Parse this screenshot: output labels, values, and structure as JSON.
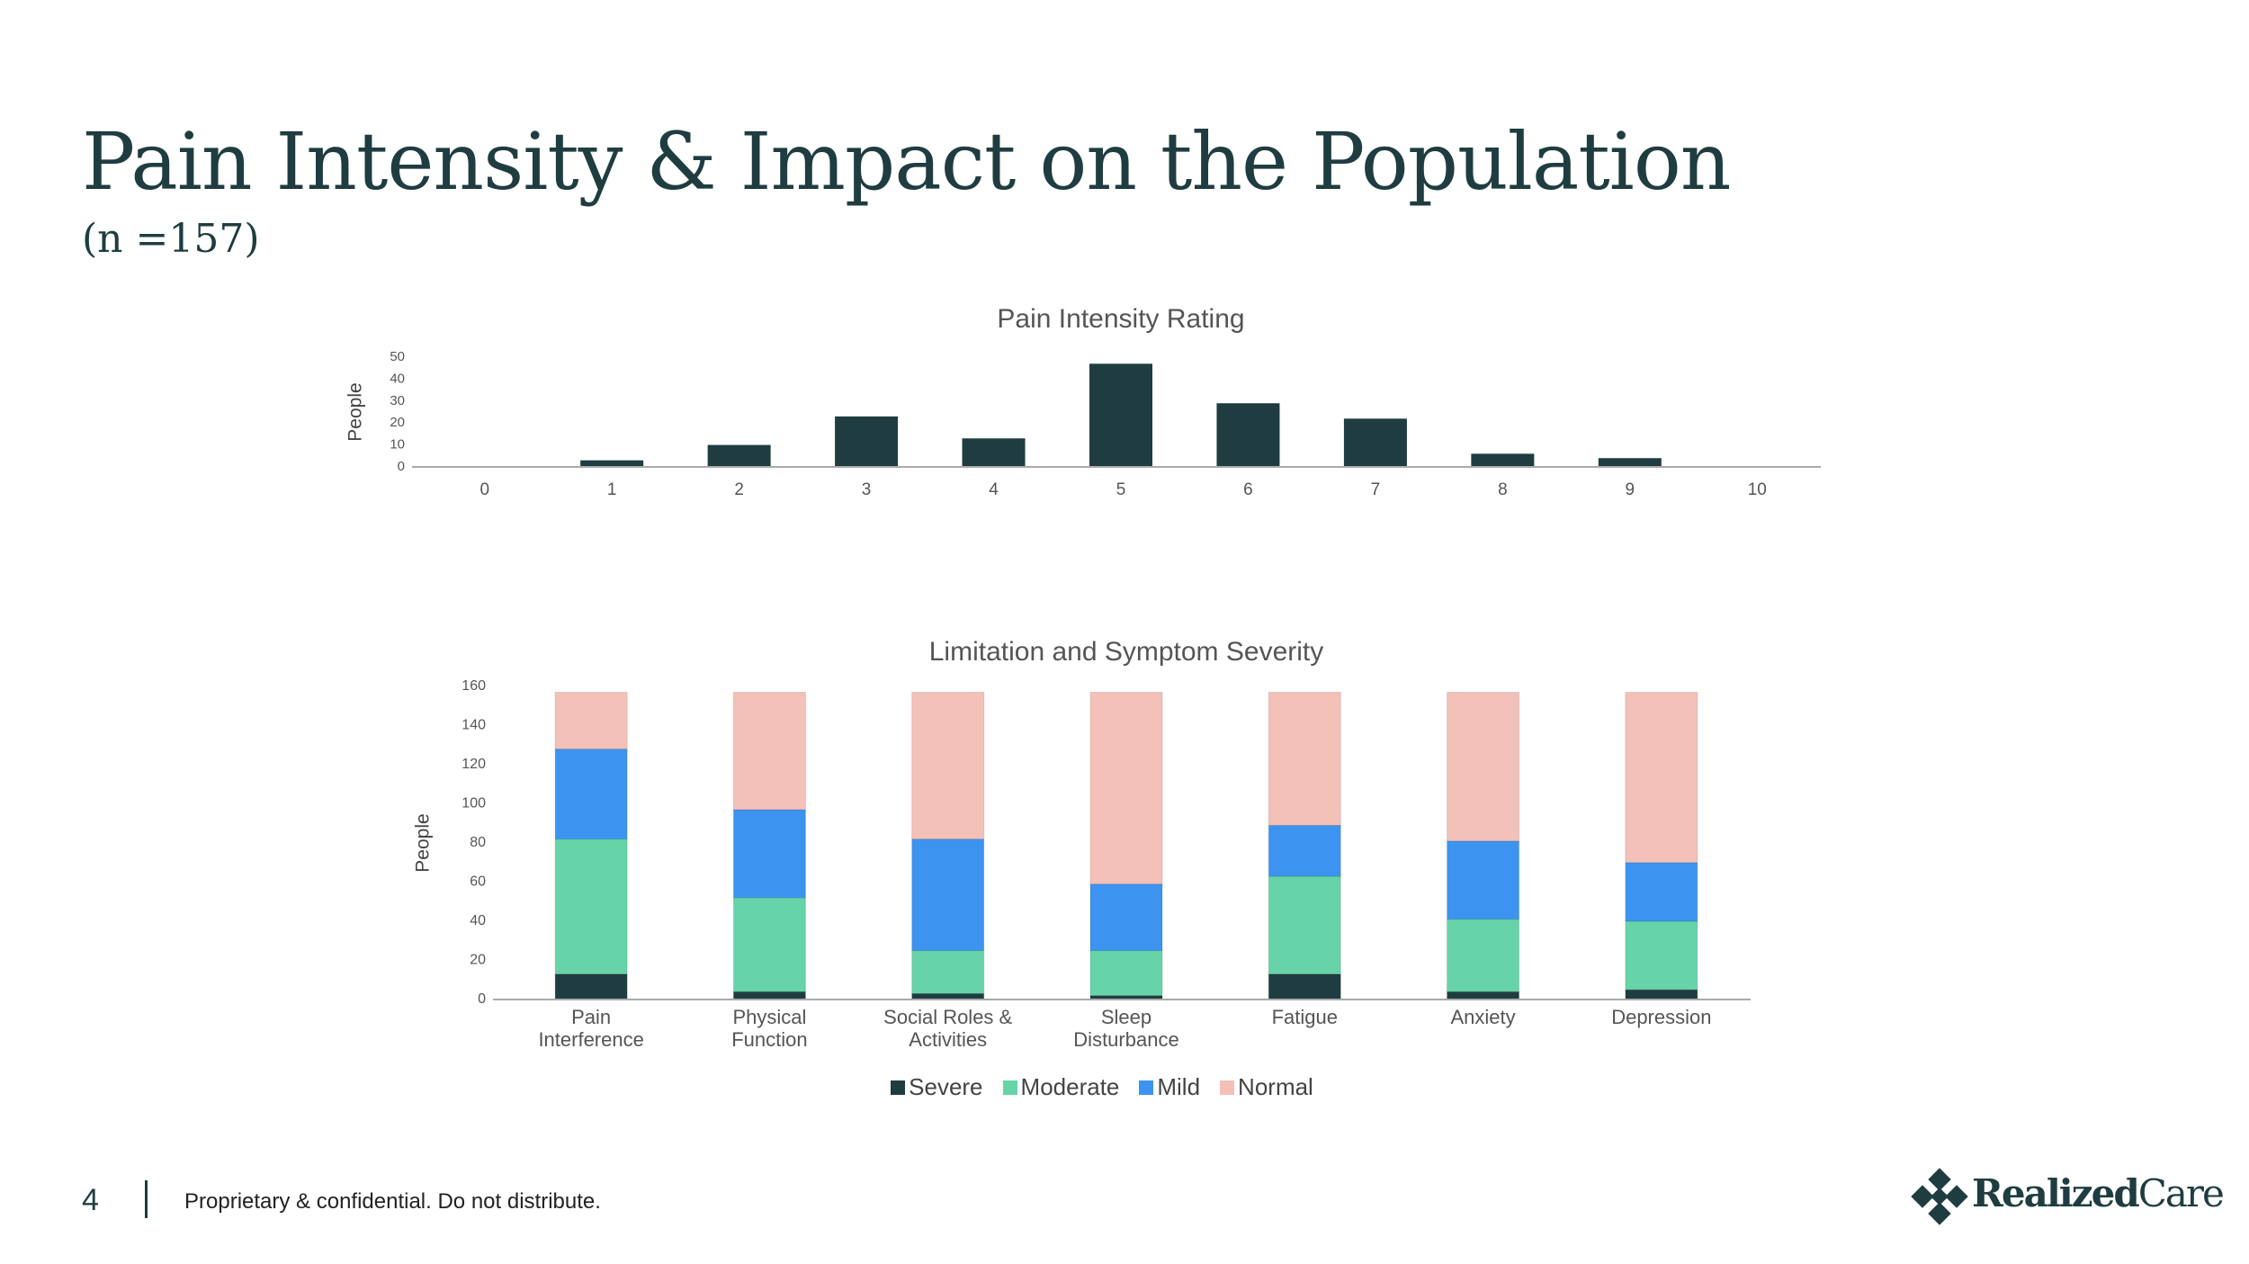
{
  "header": {
    "title": "Pain Intensity & Impact on the Population",
    "subtitle": "(n =157)"
  },
  "chart_data": [
    {
      "type": "bar",
      "title": "Pain Intensity Rating",
      "y_label": "People",
      "categories": [
        "0",
        "1",
        "2",
        "3",
        "4",
        "5",
        "6",
        "7",
        "8",
        "9",
        "10"
      ],
      "values": [
        0,
        3,
        10,
        23,
        13,
        47,
        29,
        22,
        6,
        4,
        0
      ],
      "color": "#1f3d40",
      "ylim": [
        0,
        50
      ],
      "yticks": [
        0,
        10,
        20,
        30,
        40,
        50
      ],
      "grid": false
    },
    {
      "type": "stacked_bar",
      "title": "Limitation and Symptom Severity",
      "y_label": "People",
      "categories": [
        "Pain Interference",
        "Physical Function",
        "Social Roles & Activities",
        "Sleep Disturbance",
        "Fatigue",
        "Anxiety",
        "Depression"
      ],
      "series": [
        {
          "name": "Severe",
          "color": "#1f3d40",
          "values": [
            13,
            4,
            3,
            2,
            13,
            4,
            5
          ]
        },
        {
          "name": "Moderate",
          "color": "#66d4a8",
          "values": [
            69,
            48,
            22,
            23,
            50,
            37,
            35
          ]
        },
        {
          "name": "Mild",
          "color": "#3d94f0",
          "values": [
            46,
            45,
            57,
            34,
            26,
            40,
            30
          ]
        },
        {
          "name": "Normal",
          "color": "#f4c1b9",
          "values": [
            29,
            60,
            75,
            98,
            68,
            76,
            87
          ]
        }
      ],
      "ylim": [
        0,
        160
      ],
      "yticks": [
        0,
        20,
        40,
        60,
        80,
        100,
        120,
        140,
        160
      ],
      "grid": false,
      "legend": "bottom"
    }
  ],
  "footer": {
    "page": "4",
    "notice": "Proprietary & confidential. Do not distribute.",
    "brand": [
      "Realized",
      "Care"
    ]
  }
}
